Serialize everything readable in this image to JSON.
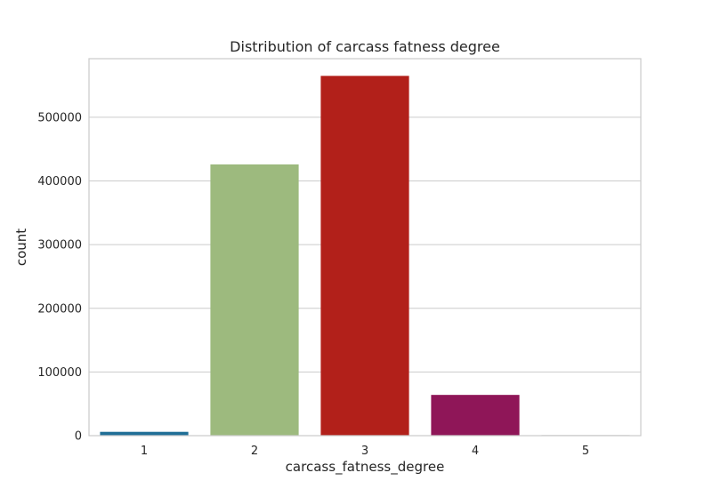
{
  "chart_data": {
    "type": "bar",
    "title": "Distribution of carcass fatness degree",
    "xlabel": "carcass_fatness_degree",
    "ylabel": "count",
    "categories": [
      "1",
      "2",
      "3",
      "4",
      "5"
    ],
    "values": [
      6000,
      426000,
      565000,
      64000,
      1000
    ],
    "colors": [
      "#1f6e96",
      "#9dba7e",
      "#b2201a",
      "#8f1658",
      "#c9c9c9"
    ],
    "ylim": [
      0,
      592000
    ],
    "yticks": [
      0,
      100000,
      200000,
      300000,
      400000,
      500000
    ],
    "ytick_labels": [
      "0",
      "100000",
      "200000",
      "300000",
      "400000",
      "500000"
    ],
    "grid": "horizontal",
    "legend": "none"
  }
}
